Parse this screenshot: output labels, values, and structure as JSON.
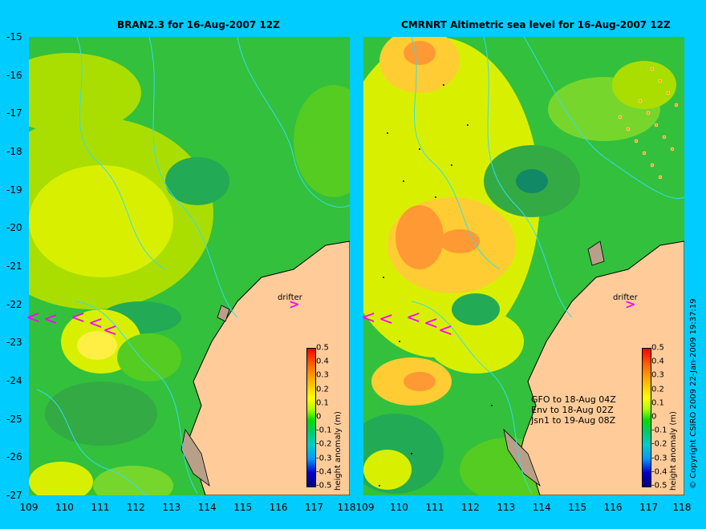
{
  "maps": {
    "left": {
      "title": "BRAN2.3 for 16-Aug-2007 12Z"
    },
    "right": {
      "title": "CMRNRT Altimetric sea level  for 16-Aug-2007 12Z"
    }
  },
  "axes": {
    "lat_ticks": [
      "-15",
      "-16",
      "-17",
      "-18",
      "-19",
      "-20",
      "-21",
      "-22",
      "-23",
      "-24",
      "-25",
      "-26",
      "-27"
    ],
    "lon_ticks": [
      "109",
      "110",
      "111",
      "112",
      "113",
      "114",
      "115",
      "116",
      "117",
      "118"
    ]
  },
  "drifter": {
    "label": "drifter",
    "arrow": ">",
    "trail_symbol": "<"
  },
  "colorbar": {
    "label": "height anomaly (m)",
    "ticks": [
      "0.5",
      "0.4",
      "0.3",
      "0.2",
      "0.1",
      "0",
      "-0.1",
      "-0.2",
      "-0.3",
      "-0.4",
      "-0.5"
    ]
  },
  "satellites": {
    "lines": [
      "GFO to 18-Aug 04Z",
      "Env to 18-Aug 02Z",
      "Jsn1 to 19-Aug 08Z"
    ]
  },
  "copyright": "© Copyright CSIRO 2009   22-Jan-2009 19:37:19",
  "colors": {
    "background": "#00ccff",
    "land": "#ffcc99",
    "drifter": "#ff00ff",
    "contour": "#33ddee"
  }
}
